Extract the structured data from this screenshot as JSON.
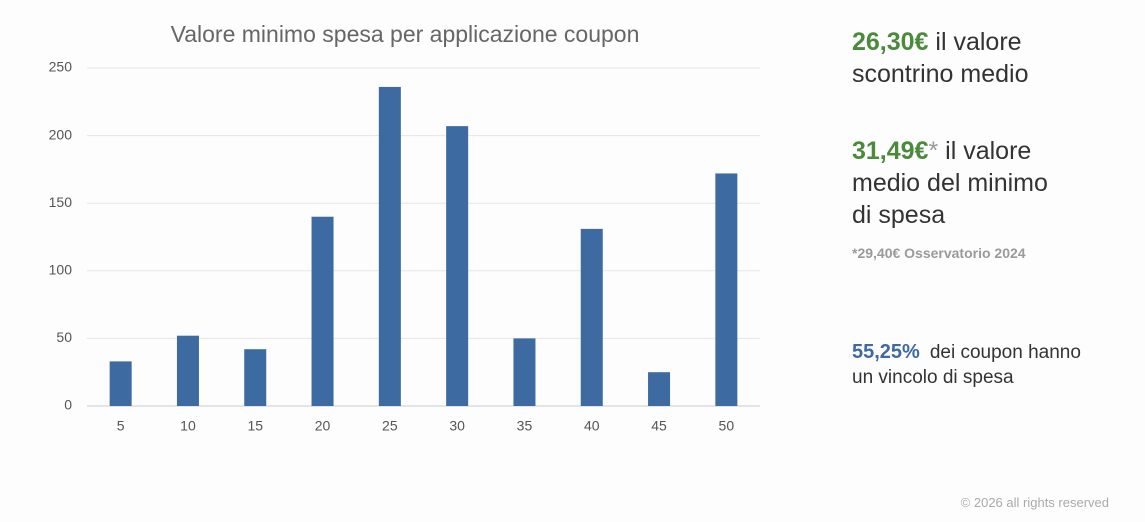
{
  "chart_data": {
    "type": "bar",
    "title": "Valore minimo spesa per applicazione coupon",
    "categories": [
      "5",
      "10",
      "15",
      "20",
      "25",
      "30",
      "35",
      "40",
      "45",
      "50"
    ],
    "values": [
      33,
      52,
      42,
      140,
      236,
      207,
      50,
      131,
      25,
      172
    ],
    "color": "#3d6aa1",
    "ylim": [
      0,
      250
    ],
    "yticks": [
      0,
      50,
      100,
      150,
      200,
      250
    ],
    "grid": true
  },
  "stats": [
    {
      "value": "26,30€",
      "lines": [
        "il valore",
        "scontrino medio"
      ]
    },
    {
      "value": "31,49€",
      "marker": "*",
      "lines": [
        "il valore",
        "medio del minimo",
        "di spesa"
      ],
      "note": "*29,40€ Osservatorio 2024"
    },
    {
      "value": "55,25%",
      "lines": [
        "dei coupon hanno",
        "un vincolo di spesa"
      ]
    }
  ],
  "footer": "© 2026 all rights reserved"
}
